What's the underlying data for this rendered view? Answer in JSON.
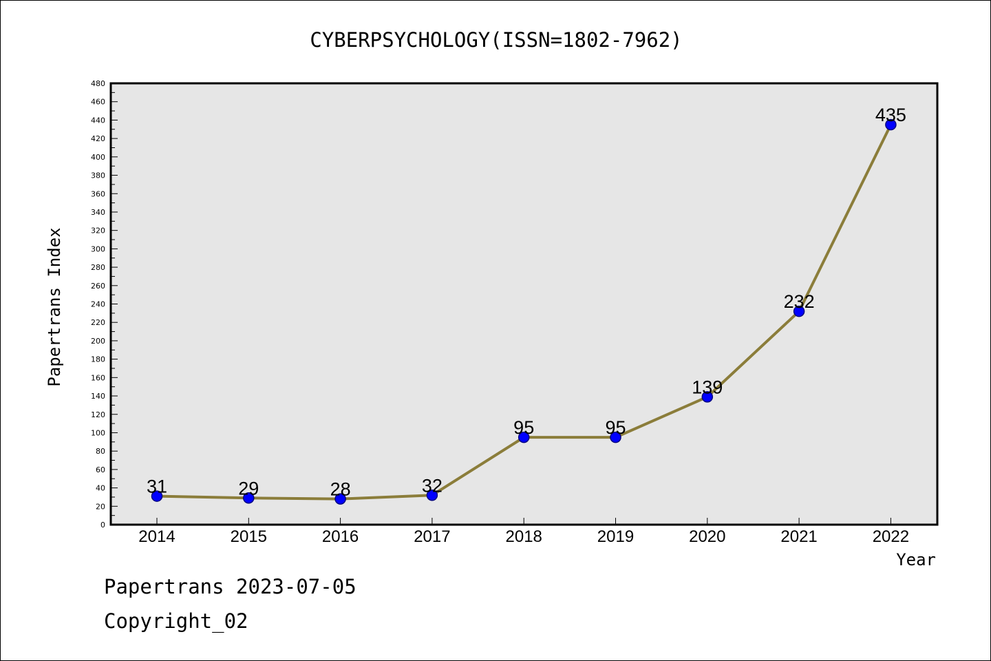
{
  "chart_data": {
    "type": "line",
    "title": "CYBERPSYCHOLOGY(ISSN=1802-7962)",
    "xlabel": "Year",
    "ylabel": "Papertrans Index",
    "categories": [
      "2014",
      "2015",
      "2016",
      "2017",
      "2018",
      "2019",
      "2020",
      "2021",
      "2022"
    ],
    "series": [
      {
        "values": [
          31,
          29,
          28,
          32,
          95,
          95,
          139,
          232,
          435
        ]
      }
    ],
    "data_labels": [
      "31",
      "29",
      "28",
      "32",
      "95",
      "95",
      "139",
      "232",
      "435"
    ],
    "ylim": [
      0,
      480
    ],
    "y_ticks": [
      0,
      20,
      40,
      60,
      80,
      100,
      120,
      140,
      160,
      180,
      200,
      220,
      240,
      260,
      280,
      300,
      320,
      340,
      360,
      380,
      400,
      420,
      440,
      460,
      480
    ],
    "grid": false,
    "legend": "none",
    "colors": {
      "plot_background": "#e6e6e6",
      "line": "#8b7d3a",
      "marker_fill": "#0000ff",
      "marker_stroke": "#000080"
    }
  },
  "footer": {
    "date_line": "Papertrans 2023-07-05",
    "copyright": "Copyright_02"
  }
}
